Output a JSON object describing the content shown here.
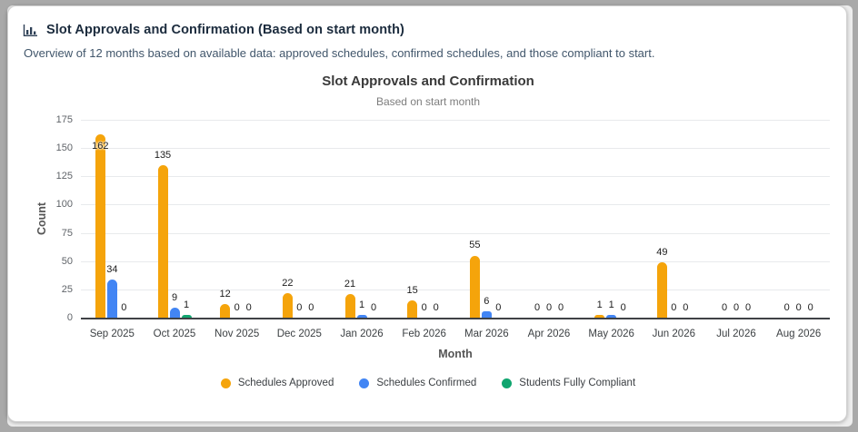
{
  "header": {
    "icon": "bar-chart-icon",
    "title": "Slot Approvals and Confirmation (Based on start month)",
    "description": "Overview of 12 months based on available data: approved schedules, confirmed schedules, and those compliant to start."
  },
  "chart_data": {
    "type": "bar",
    "title": "Slot Approvals and Confirmation",
    "subtitle": "Based on start month",
    "xlabel": "Month",
    "ylabel": "Count",
    "ylim": [
      0,
      175
    ],
    "yticks": [
      0,
      25,
      50,
      75,
      100,
      125,
      150,
      175
    ],
    "grid": true,
    "legend_position": "bottom",
    "categories": [
      "Sep 2025",
      "Oct 2025",
      "Nov 2025",
      "Dec 2025",
      "Jan 2026",
      "Feb 2026",
      "Mar 2026",
      "Apr 2026",
      "May 2026",
      "Jun 2026",
      "Jul 2026",
      "Aug 2026"
    ],
    "series": [
      {
        "name": "Schedules Approved",
        "color": "#F5A40B",
        "values": [
          162,
          135,
          12,
          22,
          21,
          15,
          55,
          0,
          1,
          49,
          0,
          0
        ]
      },
      {
        "name": "Schedules Confirmed",
        "color": "#4285F4",
        "values": [
          34,
          9,
          0,
          0,
          1,
          0,
          6,
          0,
          1,
          0,
          0,
          0
        ]
      },
      {
        "name": "Students Fully Compliant",
        "color": "#10A56F",
        "values": [
          0,
          1,
          0,
          0,
          0,
          0,
          0,
          0,
          0,
          0,
          0,
          0
        ]
      }
    ],
    "colors": {
      "grid": "#e8eaec",
      "axis_line": "#3f4246",
      "value_label": "#1c1c1c",
      "tick_label": "#5f6368",
      "category_label": "#3c4043"
    }
  }
}
